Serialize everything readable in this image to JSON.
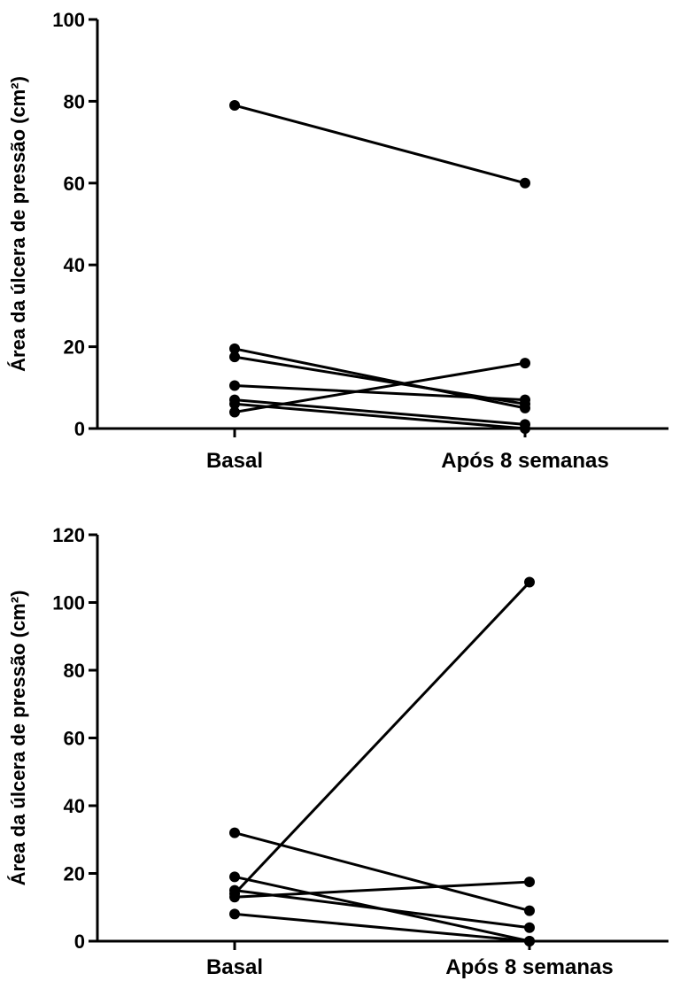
{
  "chart_data": [
    {
      "type": "line",
      "categories": [
        "Basal",
        "Após 8 semanas"
      ],
      "ylabel": "Área da úlcera de pressão (cm²)",
      "ylim": [
        0,
        100
      ],
      "yticks": [
        0,
        20,
        40,
        60,
        80,
        100
      ],
      "grid": false,
      "series": [
        {
          "values": [
            79,
            60
          ]
        },
        {
          "values": [
            19.5,
            5
          ]
        },
        {
          "values": [
            17.5,
            6
          ]
        },
        {
          "values": [
            10.5,
            7
          ]
        },
        {
          "values": [
            7,
            1
          ]
        },
        {
          "values": [
            6,
            0
          ]
        },
        {
          "values": [
            4,
            16
          ]
        }
      ]
    },
    {
      "type": "line",
      "categories": [
        "Basal",
        "Após 8 semanas"
      ],
      "ylabel": "Área da úlcera de pressão (cm²)",
      "ylim": [
        0,
        120
      ],
      "yticks": [
        0,
        20,
        40,
        60,
        80,
        100,
        120
      ],
      "grid": false,
      "series": [
        {
          "values": [
            32,
            9
          ]
        },
        {
          "values": [
            19,
            0
          ]
        },
        {
          "values": [
            15,
            4
          ]
        },
        {
          "values": [
            14,
            106
          ]
        },
        {
          "values": [
            13,
            17.5
          ]
        },
        {
          "values": [
            8,
            0
          ]
        }
      ]
    }
  ]
}
